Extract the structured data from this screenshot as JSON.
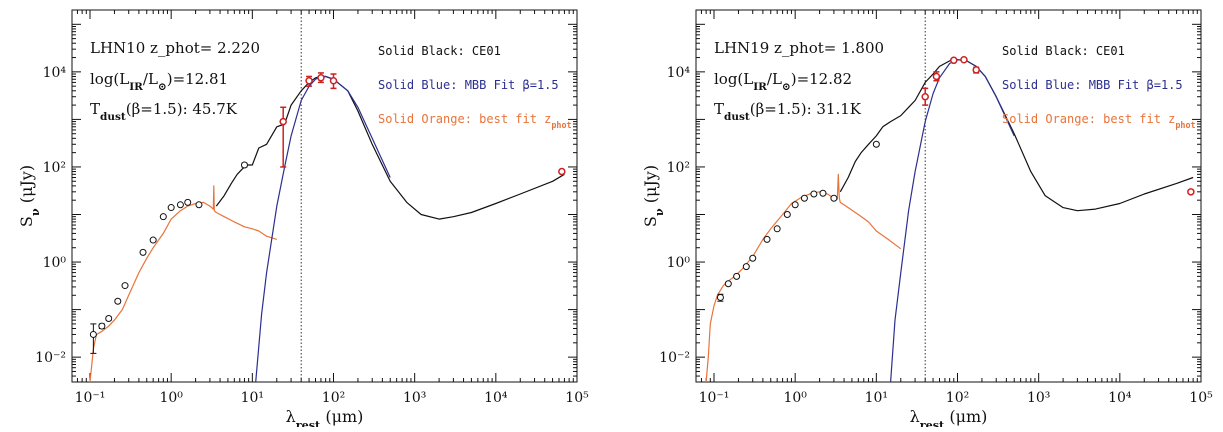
{
  "colors": {
    "black": "#111111",
    "blue": "#2b2f8f",
    "orange": "#e8743b",
    "red": "#cc2222",
    "vline": "#333333"
  },
  "chart_data": [
    {
      "type": "line",
      "id": "LHN10",
      "xscale": "log",
      "yscale": "log",
      "xlim": [
        0.06,
        100000
      ],
      "ylim": [
        0.003,
        200000
      ],
      "x_tick_labels": [
        "10⁻¹",
        "10⁰",
        "10¹",
        "10²",
        "10³",
        "10⁴",
        "10⁵"
      ],
      "y_tick_labels": [
        "10⁻²",
        "10⁰",
        "10²",
        "10⁴"
      ],
      "xlabel_main": "λ",
      "xlabel_sub": "rest",
      "xlabel_unit": " (μm)",
      "ylabel_main": "S",
      "ylabel_sub": "ν",
      "ylabel_unit": " (μJy)",
      "info": {
        "line1": "LHN10 z_phot=  2.220",
        "line2": "log(L",
        "line2_sub": "IR",
        "line2_mid": "/L",
        "line2_sub2": "⊙",
        "line2_end": ")=12.81",
        "line3": "T",
        "line3_sub": "dust",
        "line3_end": "(β=1.5):  45.7K"
      },
      "legend": {
        "black": "Solid Black: CE01",
        "blue": "Solid Blue: MBB Fit β=1.5",
        "orange": "Solid Orange: best fit z",
        "orange_sub": "phot"
      },
      "vline_x": 40,
      "series": [
        {
          "name": "Solid Black: CE01",
          "color": "black",
          "x": [
            3.6,
            4.5,
            5.5,
            6.5,
            7.5,
            8.5,
            10,
            12,
            15,
            20,
            25,
            30,
            40,
            50,
            60,
            70,
            80,
            100,
            150,
            200,
            300,
            500,
            800,
            1200,
            2000,
            3000,
            5000,
            10000,
            20000,
            50000,
            70000
          ],
          "y": [
            15,
            25,
            45,
            70,
            90,
            110,
            110,
            250,
            300,
            700,
            800,
            2000,
            4000,
            6000,
            7500,
            8000,
            8000,
            7000,
            4000,
            1500,
            300,
            50,
            18,
            10,
            8,
            9,
            11,
            17,
            27,
            50,
            70
          ]
        },
        {
          "name": "Solid Blue: MBB Fit β=1.5",
          "color": "blue",
          "x": [
            11,
            13,
            15,
            20,
            25,
            30,
            40,
            50,
            60,
            70,
            80,
            100,
            150,
            200,
            300,
            500
          ],
          "y": [
            0.003,
            0.08,
            0.6,
            15,
            100,
            450,
            2500,
            5000,
            7000,
            8000,
            8000,
            7000,
            4000,
            1800,
            400,
            60
          ]
        },
        {
          "name": "Solid Orange: best fit z_phot",
          "color": "orange",
          "x": [
            0.1,
            0.11,
            0.12,
            0.14,
            0.17,
            0.2,
            0.25,
            0.3,
            0.4,
            0.5,
            0.6,
            0.8,
            1.0,
            1.3,
            1.6,
            2.0,
            2.5,
            3.0,
            3.3,
            3.35,
            3.4,
            3.6,
            4.5,
            6,
            8,
            10,
            12,
            15,
            20
          ],
          "y": [
            0.003,
            0.015,
            0.03,
            0.035,
            0.045,
            0.06,
            0.1,
            0.2,
            0.6,
            1.2,
            2,
            4,
            8,
            12,
            15,
            17,
            18,
            15,
            13,
            40,
            12,
            11,
            9,
            7,
            5.5,
            5,
            4.5,
            3.5,
            3.0
          ]
        }
      ],
      "points_black": [
        {
          "x": 0.11,
          "y": 0.03,
          "ylo": 0.012,
          "yhi": 0.05
        },
        {
          "x": 0.14,
          "y": 0.045,
          "ylo": 0.04,
          "yhi": 0.05
        },
        {
          "x": 0.17,
          "y": 0.065,
          "ylo": 0.06,
          "yhi": 0.07
        },
        {
          "x": 0.22,
          "y": 0.15,
          "ylo": 0.14,
          "yhi": 0.16
        },
        {
          "x": 0.27,
          "y": 0.32,
          "ylo": 0.3,
          "yhi": 0.34
        },
        {
          "x": 0.45,
          "y": 1.6,
          "ylo": 1.5,
          "yhi": 1.7
        },
        {
          "x": 0.6,
          "y": 2.9,
          "ylo": 2.7,
          "yhi": 3.1
        },
        {
          "x": 0.8,
          "y": 9,
          "ylo": 8.5,
          "yhi": 9.5
        },
        {
          "x": 1.0,
          "y": 14,
          "ylo": 13.5,
          "yhi": 14.5
        },
        {
          "x": 1.3,
          "y": 16,
          "ylo": 15.5,
          "yhi": 16.5
        },
        {
          "x": 1.6,
          "y": 18,
          "ylo": 17.5,
          "yhi": 18.5
        },
        {
          "x": 2.2,
          "y": 16,
          "ylo": 15.5,
          "yhi": 16.5
        },
        {
          "x": 8,
          "y": 110,
          "ylo": 100,
          "yhi": 120
        }
      ],
      "points_red": [
        {
          "x": 24,
          "y": 900,
          "ylo": 100,
          "yhi": 1800
        },
        {
          "x": 50,
          "y": 6500,
          "ylo": 5000,
          "yhi": 8000
        },
        {
          "x": 70,
          "y": 7500,
          "ylo": 6000,
          "yhi": 9500
        },
        {
          "x": 100,
          "y": 6500,
          "ylo": 4500,
          "yhi": 9000
        },
        {
          "x": 65000,
          "y": 80,
          "ylo": 75,
          "yhi": 85
        }
      ]
    },
    {
      "type": "line",
      "id": "LHN19",
      "xscale": "log",
      "yscale": "log",
      "xlim": [
        0.06,
        100000
      ],
      "ylim": [
        0.003,
        200000
      ],
      "x_tick_labels": [
        "10⁻¹",
        "10⁰",
        "10¹",
        "10²",
        "10³",
        "10⁴",
        "10⁵"
      ],
      "y_tick_labels": [
        "10⁻²",
        "10⁰",
        "10²",
        "10⁴"
      ],
      "xlabel_main": "λ",
      "xlabel_sub": "rest",
      "xlabel_unit": " (μm)",
      "ylabel_main": "S",
      "ylabel_sub": "ν",
      "ylabel_unit": " (μJy)",
      "info": {
        "line1": "LHN19 z_phot=  1.800",
        "line2": "log(L",
        "line2_sub": "IR",
        "line2_mid": "/L",
        "line2_sub2": "⊙",
        "line2_end": ")=12.82",
        "line3": "T",
        "line3_sub": "dust",
        "line3_end": "(β=1.5):  31.1K"
      },
      "legend": {
        "black": "Solid Black: CE01",
        "blue": "Solid Blue: MBB Fit β=1.5",
        "orange": "Solid Orange: best fit z",
        "orange_sub": "phot"
      },
      "vline_x": 40,
      "series": [
        {
          "name": "Solid Black: CE01",
          "color": "black",
          "x": [
            3.6,
            4.5,
            5.5,
            6.5,
            8,
            10,
            12,
            15,
            20,
            25,
            30,
            40,
            50,
            60,
            80,
            100,
            130,
            170,
            220,
            300,
            500,
            800,
            1200,
            2000,
            3000,
            5000,
            10000,
            20000,
            50000,
            80000
          ],
          "y": [
            30,
            60,
            130,
            200,
            300,
            450,
            700,
            900,
            1200,
            1800,
            2500,
            6000,
            9000,
            13000,
            17000,
            18000,
            17000,
            13000,
            8000,
            3000,
            500,
            80,
            25,
            14,
            12,
            13,
            17,
            27,
            45,
            60
          ]
        },
        {
          "name": "Solid Blue: MBB Fit β=1.5",
          "color": "blue",
          "x": [
            15,
            17,
            20,
            25,
            30,
            40,
            50,
            60,
            80,
            100,
            130,
            170,
            220,
            300,
            500
          ],
          "y": [
            0.003,
            0.06,
            0.6,
            12,
            80,
            900,
            3500,
            7500,
            15000,
            18000,
            17000,
            13000,
            8000,
            3000,
            450
          ]
        },
        {
          "name": "Solid Orange: best fit z_phot",
          "color": "orange",
          "x": [
            0.08,
            0.085,
            0.09,
            0.1,
            0.11,
            0.13,
            0.15,
            0.18,
            0.22,
            0.3,
            0.4,
            0.5,
            0.7,
            0.9,
            1.2,
            1.6,
            2.0,
            2.5,
            3.0,
            3.3,
            3.4,
            3.5,
            3.6,
            4.5,
            6,
            8,
            10,
            14,
            20
          ],
          "y": [
            0.003,
            0.01,
            0.05,
            0.12,
            0.2,
            0.32,
            0.4,
            0.5,
            0.7,
            1.3,
            3,
            5,
            10,
            17,
            23,
            28,
            30,
            27,
            22,
            21,
            70,
            22,
            18,
            14,
            10,
            7,
            4.5,
            3,
            1.9
          ]
        }
      ],
      "points_black": [
        {
          "x": 0.12,
          "y": 0.18,
          "ylo": 0.15,
          "yhi": 0.21
        },
        {
          "x": 0.15,
          "y": 0.35,
          "ylo": 0.33,
          "yhi": 0.37
        },
        {
          "x": 0.19,
          "y": 0.5,
          "ylo": 0.47,
          "yhi": 0.53
        },
        {
          "x": 0.25,
          "y": 0.8,
          "ylo": 0.75,
          "yhi": 0.85
        },
        {
          "x": 0.3,
          "y": 1.2,
          "ylo": 1.15,
          "yhi": 1.25
        },
        {
          "x": 0.45,
          "y": 3,
          "ylo": 2.9,
          "yhi": 3.1
        },
        {
          "x": 0.6,
          "y": 5,
          "ylo": 4.8,
          "yhi": 5.2
        },
        {
          "x": 0.8,
          "y": 10,
          "ylo": 9.5,
          "yhi": 10.5
        },
        {
          "x": 1.0,
          "y": 16,
          "ylo": 15.5,
          "yhi": 16.5
        },
        {
          "x": 1.3,
          "y": 22,
          "ylo": 21,
          "yhi": 23
        },
        {
          "x": 1.7,
          "y": 27,
          "ylo": 26,
          "yhi": 28
        },
        {
          "x": 2.2,
          "y": 28,
          "ylo": 27,
          "yhi": 29
        },
        {
          "x": 3.0,
          "y": 22,
          "ylo": 21,
          "yhi": 23
        },
        {
          "x": 10,
          "y": 300,
          "ylo": 280,
          "yhi": 320
        }
      ],
      "points_red": [
        {
          "x": 40,
          "y": 3000,
          "ylo": 2000,
          "yhi": 4500
        },
        {
          "x": 55,
          "y": 8000,
          "ylo": 6500,
          "yhi": 10000
        },
        {
          "x": 90,
          "y": 17500,
          "ylo": 16500,
          "yhi": 18500
        },
        {
          "x": 120,
          "y": 18000,
          "ylo": 17000,
          "yhi": 19000
        },
        {
          "x": 170,
          "y": 11000,
          "ylo": 9500,
          "yhi": 12500
        },
        {
          "x": 75000,
          "y": 30,
          "ylo": 28,
          "yhi": 32
        }
      ]
    }
  ]
}
